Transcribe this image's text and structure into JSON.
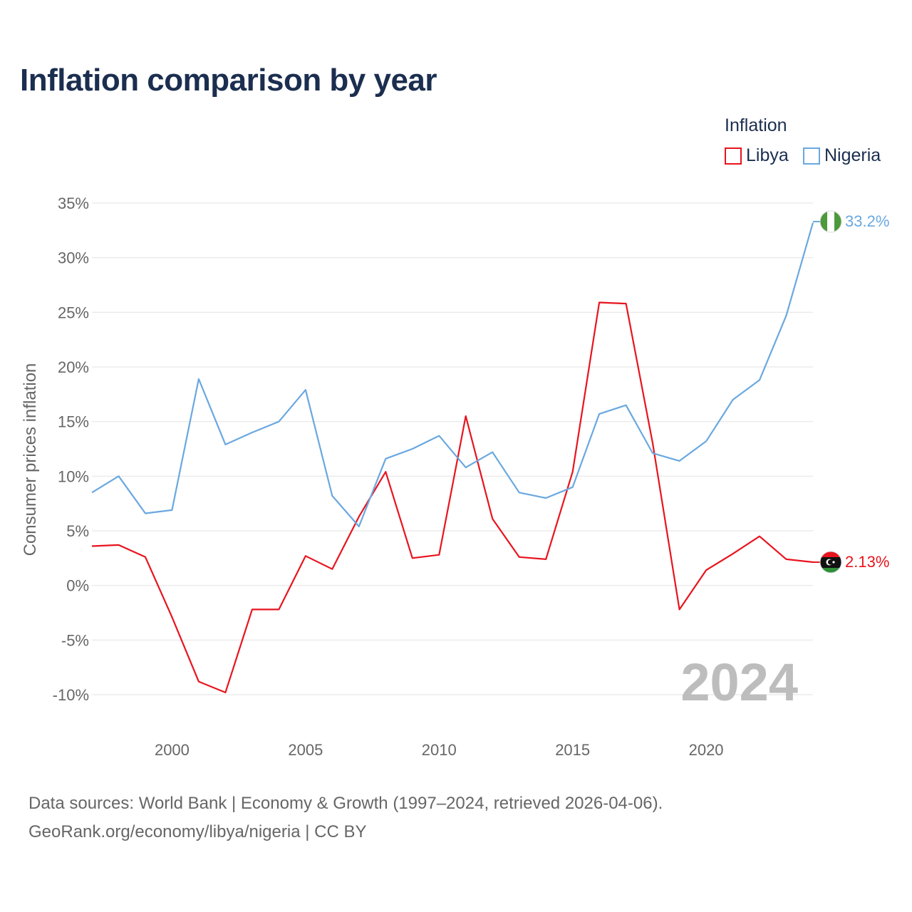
{
  "chart_data": {
    "type": "line",
    "title": "Inflation comparison by year",
    "ylabel": "Consumer prices inflation",
    "xlabel": "",
    "legend_title": "Inflation",
    "legend_position": "top-right",
    "ylim": [
      -12.5,
      36
    ],
    "xlim": [
      1997,
      2024
    ],
    "yticks": [
      35,
      30,
      25,
      20,
      15,
      10,
      5,
      0,
      -5,
      -10
    ],
    "ytick_labels": [
      "35%",
      "30%",
      "25%",
      "20%",
      "15%",
      "10%",
      "5%",
      "0%",
      "-5%",
      "-10%"
    ],
    "xticks": [
      2000,
      2005,
      2010,
      2015,
      2020
    ],
    "xtick_labels": [
      "2000",
      "2005",
      "2010",
      "2015",
      "2020"
    ],
    "year_watermark": "2024",
    "x": [
      1997,
      1998,
      1999,
      2000,
      2001,
      2002,
      2003,
      2004,
      2005,
      2006,
      2007,
      2008,
      2009,
      2010,
      2011,
      2012,
      2013,
      2014,
      2015,
      2016,
      2017,
      2018,
      2019,
      2020,
      2021,
      2022,
      2023,
      2024
    ],
    "series": [
      {
        "name": "Libya",
        "color": "#e8141e",
        "end_label": "2.13%",
        "flag": "libya-flag",
        "values": [
          3.6,
          3.7,
          2.6,
          -2.9,
          -8.8,
          -9.8,
          -2.2,
          -2.2,
          2.7,
          1.5,
          6.3,
          10.4,
          2.5,
          2.8,
          15.5,
          6.1,
          2.6,
          2.4,
          10.4,
          25.9,
          25.8,
          13.0,
          -2.2,
          1.4,
          2.9,
          4.5,
          2.4,
          2.13
        ]
      },
      {
        "name": "Nigeria",
        "color": "#6aa8e0",
        "end_label": "33.2%",
        "flag": "nigeria-flag",
        "values": [
          8.5,
          10.0,
          6.6,
          6.9,
          18.9,
          12.9,
          14.0,
          15.0,
          17.9,
          8.2,
          5.4,
          11.6,
          12.5,
          13.7,
          10.8,
          12.2,
          8.5,
          8.0,
          9.0,
          15.7,
          16.5,
          12.1,
          11.4,
          13.2,
          17.0,
          18.8,
          24.7,
          33.2
        ]
      }
    ]
  },
  "source": {
    "line1": "Data sources: World Bank | Economy & Growth (1997–2024, retrieved 2026-04-06).",
    "line2": "GeoRank.org/economy/libya/nigeria | CC BY"
  }
}
